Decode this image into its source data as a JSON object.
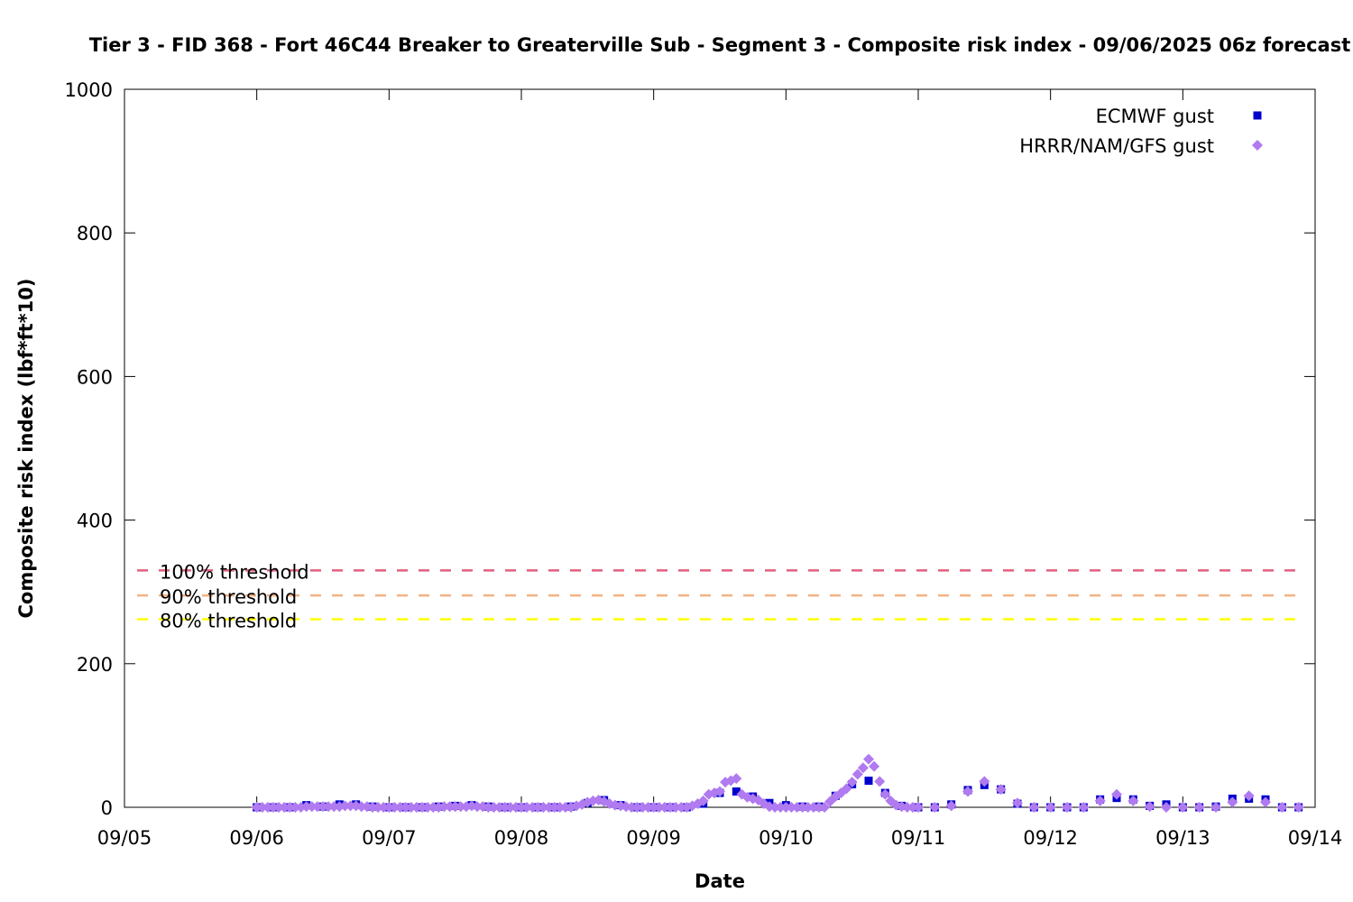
{
  "chart_data": {
    "type": "scatter",
    "title": "Tier 3 - FID 368 - Fort 46C44 Breaker to Greaterville Sub - Segment 3 - Composite risk index - 09/06/2025 06z forecast",
    "xlabel": "Date",
    "ylabel": "Composite risk index (lbf*ft*10)",
    "x_ticks": [
      "09/05",
      "09/06",
      "09/07",
      "09/08",
      "09/09",
      "09/10",
      "09/11",
      "09/12",
      "09/13",
      "09/14"
    ],
    "xlim": [
      "2025-09-05 00:00",
      "2025-09-14 00:00"
    ],
    "y_ticks": [
      "0",
      "200",
      "400",
      "600",
      "800",
      "1000"
    ],
    "ylim": [
      0,
      1000
    ],
    "grid": false,
    "legend_position": "top-right",
    "thresholds": [
      {
        "label": "100% threshold",
        "value": 330,
        "color": "#e0607e"
      },
      {
        "label": "90% threshold",
        "value": 295,
        "color": "#f4b183"
      },
      {
        "label": "80% threshold",
        "value": 262,
        "color": "#ffff00"
      }
    ],
    "series": [
      {
        "name": "ECMWF gust",
        "color": "#0000cc",
        "marker": "square",
        "points": [
          [
            "2025-09-06 00:00",
            0
          ],
          [
            "2025-09-06 03:00",
            0
          ],
          [
            "2025-09-06 06:00",
            0
          ],
          [
            "2025-09-06 09:00",
            3
          ],
          [
            "2025-09-06 12:00",
            1
          ],
          [
            "2025-09-06 15:00",
            4
          ],
          [
            "2025-09-06 18:00",
            4
          ],
          [
            "2025-09-06 21:00",
            1
          ],
          [
            "2025-09-07 00:00",
            0
          ],
          [
            "2025-09-07 03:00",
            0
          ],
          [
            "2025-09-07 06:00",
            0
          ],
          [
            "2025-09-07 09:00",
            1
          ],
          [
            "2025-09-07 12:00",
            2
          ],
          [
            "2025-09-07 15:00",
            3
          ],
          [
            "2025-09-07 18:00",
            1
          ],
          [
            "2025-09-07 21:00",
            0
          ],
          [
            "2025-09-08 00:00",
            0
          ],
          [
            "2025-09-08 03:00",
            0
          ],
          [
            "2025-09-08 06:00",
            0
          ],
          [
            "2025-09-08 09:00",
            1
          ],
          [
            "2025-09-08 12:00",
            6
          ],
          [
            "2025-09-08 15:00",
            10
          ],
          [
            "2025-09-08 18:00",
            3
          ],
          [
            "2025-09-08 21:00",
            0
          ],
          [
            "2025-09-09 00:00",
            0
          ],
          [
            "2025-09-09 03:00",
            0
          ],
          [
            "2025-09-09 06:00",
            0
          ],
          [
            "2025-09-09 09:00",
            5
          ],
          [
            "2025-09-09 12:00",
            20
          ],
          [
            "2025-09-09 15:00",
            22
          ],
          [
            "2025-09-09 18:00",
            15
          ],
          [
            "2025-09-09 21:00",
            6
          ],
          [
            "2025-09-10 00:00",
            3
          ],
          [
            "2025-09-10 03:00",
            1
          ],
          [
            "2025-09-10 06:00",
            1
          ],
          [
            "2025-09-10 09:00",
            16
          ],
          [
            "2025-09-10 12:00",
            32
          ],
          [
            "2025-09-10 15:00",
            37
          ],
          [
            "2025-09-10 18:00",
            20
          ],
          [
            "2025-09-10 21:00",
            2
          ],
          [
            "2025-09-11 00:00",
            0
          ],
          [
            "2025-09-11 03:00",
            0
          ],
          [
            "2025-09-11 06:00",
            4
          ],
          [
            "2025-09-11 09:00",
            24
          ],
          [
            "2025-09-11 12:00",
            31
          ],
          [
            "2025-09-11 15:00",
            25
          ],
          [
            "2025-09-11 18:00",
            5
          ],
          [
            "2025-09-11 21:00",
            0
          ],
          [
            "2025-09-12 00:00",
            0
          ],
          [
            "2025-09-12 03:00",
            0
          ],
          [
            "2025-09-12 06:00",
            0
          ],
          [
            "2025-09-12 09:00",
            11
          ],
          [
            "2025-09-12 12:00",
            13
          ],
          [
            "2025-09-12 15:00",
            11
          ],
          [
            "2025-09-12 18:00",
            2
          ],
          [
            "2025-09-12 21:00",
            4
          ],
          [
            "2025-09-13 00:00",
            0
          ],
          [
            "2025-09-13 03:00",
            0
          ],
          [
            "2025-09-13 06:00",
            1
          ],
          [
            "2025-09-13 09:00",
            12
          ],
          [
            "2025-09-13 12:00",
            12
          ],
          [
            "2025-09-13 15:00",
            11
          ],
          [
            "2025-09-13 18:00",
            0
          ],
          [
            "2025-09-13 21:00",
            0
          ]
        ]
      },
      {
        "name": "HRRR/NAM/GFS gust",
        "color": "#b07af0",
        "marker": "diamond",
        "points": [
          [
            "2025-09-06 00:00",
            0
          ],
          [
            "2025-09-06 01:00",
            0
          ],
          [
            "2025-09-06 02:00",
            0
          ],
          [
            "2025-09-06 03:00",
            0
          ],
          [
            "2025-09-06 04:00",
            0
          ],
          [
            "2025-09-06 05:00",
            0
          ],
          [
            "2025-09-06 06:00",
            0
          ],
          [
            "2025-09-06 07:00",
            0
          ],
          [
            "2025-09-06 08:00",
            0
          ],
          [
            "2025-09-06 09:00",
            1
          ],
          [
            "2025-09-06 10:00",
            1
          ],
          [
            "2025-09-06 11:00",
            1
          ],
          [
            "2025-09-06 12:00",
            1
          ],
          [
            "2025-09-06 13:00",
            1
          ],
          [
            "2025-09-06 14:00",
            1
          ],
          [
            "2025-09-06 15:00",
            1
          ],
          [
            "2025-09-06 16:00",
            2
          ],
          [
            "2025-09-06 17:00",
            2
          ],
          [
            "2025-09-06 18:00",
            2
          ],
          [
            "2025-09-06 19:00",
            1
          ],
          [
            "2025-09-06 20:00",
            1
          ],
          [
            "2025-09-06 21:00",
            0
          ],
          [
            "2025-09-06 22:00",
            0
          ],
          [
            "2025-09-06 23:00",
            0
          ],
          [
            "2025-09-07 00:00",
            0
          ],
          [
            "2025-09-07 01:00",
            0
          ],
          [
            "2025-09-07 02:00",
            0
          ],
          [
            "2025-09-07 03:00",
            0
          ],
          [
            "2025-09-07 04:00",
            0
          ],
          [
            "2025-09-07 05:00",
            0
          ],
          [
            "2025-09-07 06:00",
            0
          ],
          [
            "2025-09-07 07:00",
            0
          ],
          [
            "2025-09-07 08:00",
            0
          ],
          [
            "2025-09-07 09:00",
            0
          ],
          [
            "2025-09-07 10:00",
            1
          ],
          [
            "2025-09-07 11:00",
            1
          ],
          [
            "2025-09-07 12:00",
            1
          ],
          [
            "2025-09-07 13:00",
            1
          ],
          [
            "2025-09-07 14:00",
            1
          ],
          [
            "2025-09-07 15:00",
            2
          ],
          [
            "2025-09-07 16:00",
            1
          ],
          [
            "2025-09-07 17:00",
            1
          ],
          [
            "2025-09-07 18:00",
            0
          ],
          [
            "2025-09-07 19:00",
            0
          ],
          [
            "2025-09-07 20:00",
            0
          ],
          [
            "2025-09-07 21:00",
            0
          ],
          [
            "2025-09-07 22:00",
            0
          ],
          [
            "2025-09-07 23:00",
            0
          ],
          [
            "2025-09-08 00:00",
            0
          ],
          [
            "2025-09-08 01:00",
            0
          ],
          [
            "2025-09-08 02:00",
            0
          ],
          [
            "2025-09-08 03:00",
            0
          ],
          [
            "2025-09-08 04:00",
            0
          ],
          [
            "2025-09-08 05:00",
            0
          ],
          [
            "2025-09-08 06:00",
            0
          ],
          [
            "2025-09-08 07:00",
            0
          ],
          [
            "2025-09-08 08:00",
            0
          ],
          [
            "2025-09-08 09:00",
            0
          ],
          [
            "2025-09-08 10:00",
            2
          ],
          [
            "2025-09-08 11:00",
            4
          ],
          [
            "2025-09-08 12:00",
            7
          ],
          [
            "2025-09-08 13:00",
            9
          ],
          [
            "2025-09-08 14:00",
            10
          ],
          [
            "2025-09-08 15:00",
            8
          ],
          [
            "2025-09-08 16:00",
            5
          ],
          [
            "2025-09-08 17:00",
            3
          ],
          [
            "2025-09-08 18:00",
            2
          ],
          [
            "2025-09-08 19:00",
            1
          ],
          [
            "2025-09-08 20:00",
            0
          ],
          [
            "2025-09-08 21:00",
            0
          ],
          [
            "2025-09-08 22:00",
            0
          ],
          [
            "2025-09-08 23:00",
            0
          ],
          [
            "2025-09-09 00:00",
            0
          ],
          [
            "2025-09-09 01:00",
            0
          ],
          [
            "2025-09-09 02:00",
            0
          ],
          [
            "2025-09-09 03:00",
            0
          ],
          [
            "2025-09-09 04:00",
            0
          ],
          [
            "2025-09-09 05:00",
            0
          ],
          [
            "2025-09-09 06:00",
            0
          ],
          [
            "2025-09-09 07:00",
            2
          ],
          [
            "2025-09-09 08:00",
            5
          ],
          [
            "2025-09-09 09:00",
            9
          ],
          [
            "2025-09-09 10:00",
            18
          ],
          [
            "2025-09-09 11:00",
            20
          ],
          [
            "2025-09-09 12:00",
            22
          ],
          [
            "2025-09-09 13:00",
            35
          ],
          [
            "2025-09-09 14:00",
            37
          ],
          [
            "2025-09-09 15:00",
            40
          ],
          [
            "2025-09-09 16:00",
            18
          ],
          [
            "2025-09-09 17:00",
            14
          ],
          [
            "2025-09-09 18:00",
            12
          ],
          [
            "2025-09-09 19:00",
            10
          ],
          [
            "2025-09-09 20:00",
            5
          ],
          [
            "2025-09-09 21:00",
            1
          ],
          [
            "2025-09-09 22:00",
            0
          ],
          [
            "2025-09-09 23:00",
            0
          ],
          [
            "2025-09-10 00:00",
            0
          ],
          [
            "2025-09-10 01:00",
            0
          ],
          [
            "2025-09-10 02:00",
            0
          ],
          [
            "2025-09-10 03:00",
            0
          ],
          [
            "2025-09-10 04:00",
            0
          ],
          [
            "2025-09-10 05:00",
            0
          ],
          [
            "2025-09-10 06:00",
            0
          ],
          [
            "2025-09-10 07:00",
            0
          ],
          [
            "2025-09-10 08:00",
            8
          ],
          [
            "2025-09-10 09:00",
            15
          ],
          [
            "2025-09-10 10:00",
            20
          ],
          [
            "2025-09-10 11:00",
            26
          ],
          [
            "2025-09-10 12:00",
            35
          ],
          [
            "2025-09-10 13:00",
            46
          ],
          [
            "2025-09-10 14:00",
            55
          ],
          [
            "2025-09-10 15:00",
            67
          ],
          [
            "2025-09-10 16:00",
            57
          ],
          [
            "2025-09-10 17:00",
            36
          ],
          [
            "2025-09-10 18:00",
            18
          ],
          [
            "2025-09-10 19:00",
            9
          ],
          [
            "2025-09-10 20:00",
            3
          ],
          [
            "2025-09-10 21:00",
            1
          ],
          [
            "2025-09-10 22:00",
            0
          ],
          [
            "2025-09-10 23:00",
            0
          ],
          [
            "2025-09-11 00:00",
            0
          ],
          [
            "2025-09-11 03:00",
            0
          ],
          [
            "2025-09-11 06:00",
            2
          ],
          [
            "2025-09-11 09:00",
            22
          ],
          [
            "2025-09-11 12:00",
            36
          ],
          [
            "2025-09-11 15:00",
            25
          ],
          [
            "2025-09-11 18:00",
            6
          ],
          [
            "2025-09-11 21:00",
            0
          ],
          [
            "2025-09-12 00:00",
            0
          ],
          [
            "2025-09-12 03:00",
            0
          ],
          [
            "2025-09-12 06:00",
            0
          ],
          [
            "2025-09-12 09:00",
            9
          ],
          [
            "2025-09-12 12:00",
            18
          ],
          [
            "2025-09-12 15:00",
            9
          ],
          [
            "2025-09-12 18:00",
            1
          ],
          [
            "2025-09-12 21:00",
            0
          ],
          [
            "2025-09-13 00:00",
            0
          ],
          [
            "2025-09-13 03:00",
            0
          ],
          [
            "2025-09-13 06:00",
            0
          ],
          [
            "2025-09-13 09:00",
            7
          ],
          [
            "2025-09-13 12:00",
            16
          ],
          [
            "2025-09-13 15:00",
            7
          ],
          [
            "2025-09-13 18:00",
            0
          ],
          [
            "2025-09-13 21:00",
            0
          ]
        ]
      }
    ]
  }
}
